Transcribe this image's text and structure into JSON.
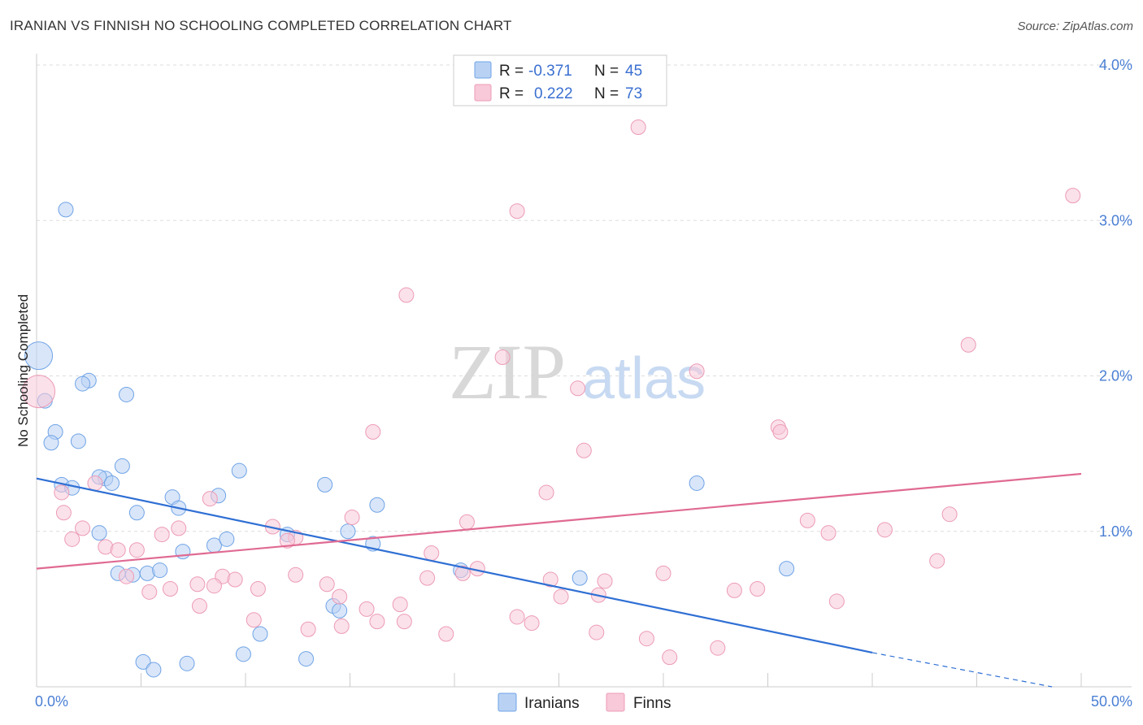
{
  "header": {
    "title": "IRANIAN VS FINNISH NO SCHOOLING COMPLETED CORRELATION CHART",
    "source": "Source: ZipAtlas.com"
  },
  "watermark": {
    "zip": "ZIP",
    "atlas": "atlas"
  },
  "colors": {
    "iranians": "#6fa3e6",
    "iranians_fill": "#b9d2f4",
    "iranians_line": "#2f6fd4",
    "finns": "#ec9bb6",
    "finns_fill": "#f8c9d8",
    "finns_line": "#e06a93",
    "tick": "#4a7fd4",
    "grid": "#dddddd"
  },
  "chart_data": {
    "type": "scatter",
    "xlabel": "",
    "ylabel": "No Schooling Completed",
    "xlim": [
      0,
      50
    ],
    "ylim": [
      0,
      4.0
    ],
    "x_tick_labels": [
      "0.0%",
      "50.0%"
    ],
    "y_ticks": [
      1.0,
      2.0,
      3.0,
      4.0
    ],
    "y_tick_labels": [
      "1.0%",
      "2.0%",
      "3.0%",
      "4.0%"
    ],
    "grid": "horizontal dashed",
    "legend_position": "top-center",
    "series": [
      {
        "name": "Iranians",
        "r_label": "R =",
        "r_value": "-0.371",
        "n_label": "N =",
        "n_value": "45",
        "trend": {
          "x": [
            0,
            40
          ],
          "y": [
            1.34,
            0.22
          ],
          "dashed_to": [
            48.6,
            0.0
          ]
        },
        "points": [
          [
            1.4,
            3.07
          ],
          [
            0.1,
            2.13
          ],
          [
            0.4,
            1.84
          ],
          [
            2.5,
            1.97
          ],
          [
            2.2,
            1.95
          ],
          [
            4.3,
            1.88
          ],
          [
            0.9,
            1.64
          ],
          [
            0.7,
            1.57
          ],
          [
            2.0,
            1.58
          ],
          [
            4.1,
            1.42
          ],
          [
            3.3,
            1.34
          ],
          [
            3.0,
            1.35
          ],
          [
            3.6,
            1.31
          ],
          [
            1.2,
            1.3
          ],
          [
            1.7,
            1.28
          ],
          [
            9.7,
            1.39
          ],
          [
            8.7,
            1.23
          ],
          [
            6.5,
            1.22
          ],
          [
            6.8,
            1.15
          ],
          [
            4.8,
            1.12
          ],
          [
            13.8,
            1.3
          ],
          [
            16.3,
            1.17
          ],
          [
            31.6,
            1.31
          ],
          [
            3.0,
            0.99
          ],
          [
            7.0,
            0.87
          ],
          [
            8.5,
            0.91
          ],
          [
            9.1,
            0.95
          ],
          [
            12.0,
            0.98
          ],
          [
            14.9,
            1.0
          ],
          [
            16.1,
            0.92
          ],
          [
            3.9,
            0.73
          ],
          [
            4.6,
            0.72
          ],
          [
            5.3,
            0.73
          ],
          [
            5.9,
            0.75
          ],
          [
            20.3,
            0.75
          ],
          [
            26.0,
            0.7
          ],
          [
            35.9,
            0.76
          ],
          [
            14.2,
            0.52
          ],
          [
            14.5,
            0.49
          ],
          [
            10.7,
            0.34
          ],
          [
            9.9,
            0.21
          ],
          [
            12.9,
            0.18
          ],
          [
            5.1,
            0.16
          ],
          [
            5.6,
            0.11
          ],
          [
            7.2,
            0.15
          ]
        ]
      },
      {
        "name": "Finns",
        "r_label": "R =",
        "r_value": "0.222",
        "n_label": "N =",
        "n_value": "73",
        "trend": {
          "x": [
            0,
            50
          ],
          "y": [
            0.76,
            1.37
          ]
        },
        "points": [
          [
            0.1,
            1.9
          ],
          [
            28.8,
            3.6
          ],
          [
            23.0,
            3.06
          ],
          [
            49.6,
            3.16
          ],
          [
            17.7,
            2.52
          ],
          [
            44.6,
            2.2
          ],
          [
            22.3,
            2.12
          ],
          [
            31.6,
            2.03
          ],
          [
            25.9,
            1.92
          ],
          [
            35.5,
            1.67
          ],
          [
            35.6,
            1.64
          ],
          [
            16.1,
            1.64
          ],
          [
            26.2,
            1.52
          ],
          [
            1.2,
            1.25
          ],
          [
            2.8,
            1.31
          ],
          [
            8.3,
            1.21
          ],
          [
            24.4,
            1.25
          ],
          [
            1.3,
            1.12
          ],
          [
            15.1,
            1.09
          ],
          [
            20.6,
            1.06
          ],
          [
            36.9,
            1.07
          ],
          [
            43.7,
            1.11
          ],
          [
            11.3,
            1.03
          ],
          [
            6.8,
            1.02
          ],
          [
            2.2,
            1.02
          ],
          [
            37.9,
            0.99
          ],
          [
            40.6,
            1.01
          ],
          [
            6.0,
            0.98
          ],
          [
            1.7,
            0.95
          ],
          [
            12.4,
            0.96
          ],
          [
            12.0,
            0.94
          ],
          [
            3.3,
            0.9
          ],
          [
            4.8,
            0.88
          ],
          [
            3.9,
            0.88
          ],
          [
            18.9,
            0.86
          ],
          [
            43.1,
            0.81
          ],
          [
            21.1,
            0.76
          ],
          [
            20.4,
            0.73
          ],
          [
            30.0,
            0.73
          ],
          [
            12.4,
            0.72
          ],
          [
            8.9,
            0.71
          ],
          [
            18.7,
            0.7
          ],
          [
            24.6,
            0.69
          ],
          [
            27.2,
            0.68
          ],
          [
            7.7,
            0.66
          ],
          [
            8.5,
            0.65
          ],
          [
            13.9,
            0.66
          ],
          [
            10.6,
            0.63
          ],
          [
            6.4,
            0.63
          ],
          [
            4.3,
            0.71
          ],
          [
            9.5,
            0.69
          ],
          [
            5.4,
            0.61
          ],
          [
            33.4,
            0.62
          ],
          [
            34.5,
            0.63
          ],
          [
            25.1,
            0.58
          ],
          [
            26.9,
            0.59
          ],
          [
            14.5,
            0.58
          ],
          [
            7.8,
            0.52
          ],
          [
            17.4,
            0.53
          ],
          [
            15.8,
            0.5
          ],
          [
            38.3,
            0.55
          ],
          [
            10.4,
            0.43
          ],
          [
            23.0,
            0.45
          ],
          [
            23.7,
            0.41
          ],
          [
            16.3,
            0.42
          ],
          [
            17.6,
            0.42
          ],
          [
            13.0,
            0.37
          ],
          [
            14.6,
            0.39
          ],
          [
            19.6,
            0.34
          ],
          [
            26.8,
            0.35
          ],
          [
            29.2,
            0.31
          ],
          [
            30.3,
            0.19
          ],
          [
            32.6,
            0.25
          ]
        ]
      }
    ]
  }
}
